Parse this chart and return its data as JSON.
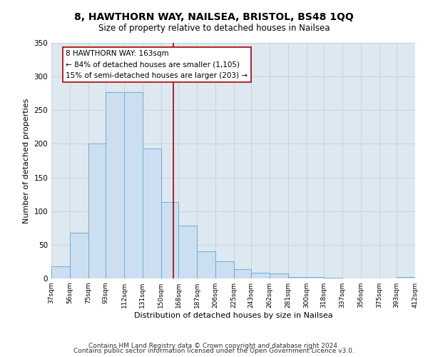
{
  "title": "8, HAWTHORN WAY, NAILSEA, BRISTOL, BS48 1QQ",
  "subtitle": "Size of property relative to detached houses in Nailsea",
  "xlabel": "Distribution of detached houses by size in Nailsea",
  "ylabel": "Number of detached properties",
  "bin_edges": [
    37,
    56,
    75,
    93,
    112,
    131,
    150,
    168,
    187,
    206,
    225,
    243,
    262,
    281,
    300,
    318,
    337,
    356,
    375,
    393,
    412
  ],
  "counts": [
    18,
    68,
    200,
    277,
    277,
    193,
    114,
    79,
    40,
    25,
    14,
    8,
    7,
    2,
    2,
    1,
    0,
    0,
    0,
    2
  ],
  "bar_facecolor": "#ccdff0",
  "bar_edgecolor": "#6aafd6",
  "vline_x": 163,
  "vline_color": "#aa0000",
  "annotation_title": "8 HAWTHORN WAY: 163sqm",
  "annotation_line1": "← 84% of detached houses are smaller (1,105)",
  "annotation_line2": "15% of semi-detached houses are larger (203) →",
  "annotation_box_edgecolor": "#aa0000",
  "annotation_box_facecolor": "white",
  "ylim": [
    0,
    350
  ],
  "grid_color": "#c8d0d8",
  "background_color": "#dde8f0",
  "tick_labels": [
    "37sqm",
    "56sqm",
    "75sqm",
    "93sqm",
    "112sqm",
    "131sqm",
    "150sqm",
    "168sqm",
    "187sqm",
    "206sqm",
    "225sqm",
    "243sqm",
    "262sqm",
    "281sqm",
    "300sqm",
    "318sqm",
    "337sqm",
    "356sqm",
    "375sqm",
    "393sqm",
    "412sqm"
  ],
  "footer1": "Contains HM Land Registry data © Crown copyright and database right 2024.",
  "footer2": "Contains public sector information licensed under the Open Government Licence v3.0.",
  "title_fontsize": 10,
  "subtitle_fontsize": 8.5,
  "footer_fontsize": 6.5,
  "yticks": [
    0,
    50,
    100,
    150,
    200,
    250,
    300,
    350
  ]
}
